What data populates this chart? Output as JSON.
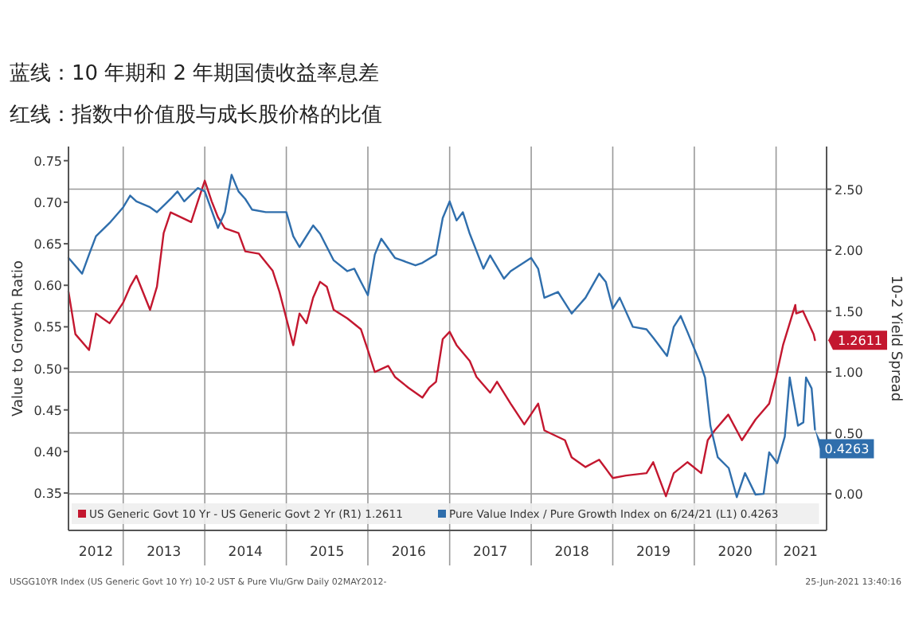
{
  "chart_data": {
    "type": "line",
    "title": "蓝线：10 年期和 2 年期国债收益率息差",
    "subtitle": "红线：指数中价值股与成长股价格的比值",
    "ylabel": "Value to Growth Ratio",
    "y2label": "10-2 Yield Spread",
    "xlim": [
      "2012-05-01",
      "2021-08-15"
    ],
    "xticks": [
      {
        "value": "2012-09-01",
        "label": "2012"
      },
      {
        "value": "2013-01-01",
        "label": null
      },
      {
        "value": "2013-07-02",
        "label": "2013"
      },
      {
        "value": "2014-01-01",
        "label": null
      },
      {
        "value": "2014-07-02",
        "label": "2014"
      },
      {
        "value": "2015-01-01",
        "label": null
      },
      {
        "value": "2015-07-02",
        "label": "2015"
      },
      {
        "value": "2016-01-01",
        "label": null
      },
      {
        "value": "2016-07-02",
        "label": "2016"
      },
      {
        "value": "2017-01-01",
        "label": null
      },
      {
        "value": "2017-07-02",
        "label": "2017"
      },
      {
        "value": "2018-01-01",
        "label": null
      },
      {
        "value": "2018-07-02",
        "label": "2018"
      },
      {
        "value": "2019-01-01",
        "label": null
      },
      {
        "value": "2019-07-02",
        "label": "2019"
      },
      {
        "value": "2020-01-01",
        "label": null
      },
      {
        "value": "2020-07-02",
        "label": "2020"
      },
      {
        "value": "2021-01-01",
        "label": null
      },
      {
        "value": "2021-04-20",
        "label": "2021"
      }
    ],
    "ylim": [
      0.305,
      0.767
    ],
    "yticks": [
      {
        "value": 0.35,
        "label": "0.35"
      },
      {
        "value": 0.4,
        "label": "0.40"
      },
      {
        "value": 0.45,
        "label": "0.45"
      },
      {
        "value": 0.5,
        "label": "0.50"
      },
      {
        "value": 0.55,
        "label": "0.55"
      },
      {
        "value": 0.6,
        "label": "0.60"
      },
      {
        "value": 0.65,
        "label": "0.65"
      },
      {
        "value": 0.7,
        "label": "0.70"
      },
      {
        "value": 0.75,
        "label": "0.75"
      }
    ],
    "y2lim": [
      -0.3,
      2.85
    ],
    "y2ticks": [
      {
        "value": 0,
        "label": "0.00"
      },
      {
        "value": 0.5,
        "label": "0.50"
      },
      {
        "value": 1,
        "label": "1.00"
      },
      {
        "value": 1.5,
        "label": "1.50"
      },
      {
        "value": 2,
        "label": "2.00"
      },
      {
        "value": 2.5,
        "label": "2.50"
      }
    ],
    "grid": true,
    "legend": "bottom",
    "line_style": "solid",
    "series": [
      {
        "name": "US Generic Govt 10 Yr - US Generic Govt 2 Yr (R1) 1.2611",
        "color": "#c3172f",
        "axis": "y2",
        "x": [
          "2012-05",
          "2012-06",
          "2012-08",
          "2012-09",
          "2012-10",
          "2012-11",
          "2013-01",
          "2013-02",
          "2013-03",
          "2013-05",
          "2013-06",
          "2013-07",
          "2013-08",
          "2013-11",
          "2013-12",
          "2014-01",
          "2014-02",
          "2014-03",
          "2014-04",
          "2014-06",
          "2014-07",
          "2014-09",
          "2014-11",
          "2014-12",
          "2015-01",
          "2015-02",
          "2015-03",
          "2015-04",
          "2015-05",
          "2015-06",
          "2015-07",
          "2015-08",
          "2015-10",
          "2015-12",
          "2016-01",
          "2016-02",
          "2016-04",
          "2016-05",
          "2016-07",
          "2016-09",
          "2016-10",
          "2016-11",
          "2016-12",
          "2017-01",
          "2017-02",
          "2017-04",
          "2017-05",
          "2017-07",
          "2017-08",
          "2017-10",
          "2017-12",
          "2018-02",
          "2018-03",
          "2018-06",
          "2018-07",
          "2018-09",
          "2018-11",
          "2019-01",
          "2019-03",
          "2019-06",
          "2019-07",
          "2019-08-27",
          "2019-10",
          "2019-12",
          "2020-02",
          "2020-03",
          "2020-04",
          "2020-06",
          "2020-08",
          "2020-10",
          "2020-12",
          "2021-01",
          "2021-02",
          "2021-03-28",
          "2021-04",
          "2021-05",
          "2021-06-18",
          "2021-06-24"
        ],
        "values": [
          1.66,
          1.31,
          1.18,
          1.48,
          1.44,
          1.4,
          1.57,
          1.7,
          1.79,
          1.51,
          1.7,
          2.14,
          2.31,
          2.23,
          2.4,
          2.57,
          2.4,
          2.27,
          2.18,
          2.14,
          1.99,
          1.97,
          1.83,
          1.66,
          1.44,
          1.22,
          1.48,
          1.4,
          1.61,
          1.74,
          1.7,
          1.51,
          1.44,
          1.35,
          1.18,
          1.0,
          1.05,
          0.96,
          0.87,
          0.79,
          0.87,
          0.92,
          1.27,
          1.33,
          1.22,
          1.09,
          0.96,
          0.83,
          0.92,
          0.74,
          0.57,
          0.74,
          0.52,
          0.44,
          0.3,
          0.22,
          0.28,
          0.13,
          0.15,
          0.17,
          0.26,
          -0.02,
          0.17,
          0.26,
          0.17,
          0.44,
          0.52,
          0.65,
          0.44,
          0.61,
          0.74,
          0.96,
          1.22,
          1.55,
          1.48,
          1.5,
          1.31,
          1.2611
        ],
        "value_labels": [
          null,
          null,
          null,
          null,
          null,
          null,
          null,
          null,
          null,
          null,
          null,
          null,
          null,
          null,
          null,
          null,
          null,
          null,
          null,
          null,
          null,
          null,
          null,
          null,
          null,
          null,
          null,
          null,
          null,
          null,
          null,
          null,
          null,
          null,
          null,
          null,
          null,
          null,
          null,
          null,
          null,
          null,
          null,
          null,
          null,
          null,
          null,
          null,
          null,
          null,
          null,
          null,
          null,
          null,
          null,
          null,
          null,
          null,
          null,
          null,
          null,
          null,
          null,
          null,
          null,
          null,
          null,
          null,
          null,
          null,
          null,
          null,
          null,
          null,
          null,
          null,
          null,
          "1.2611"
        ]
      },
      {
        "name": "Pure Value Index / Pure Growth Index on 6/24/21 (L1) 0.4263",
        "color": "#2f6eac",
        "axis": "y",
        "x": [
          "2012-05",
          "2012-07",
          "2012-08",
          "2012-09",
          "2012-11",
          "2013-01",
          "2013-02",
          "2013-03",
          "2013-05",
          "2013-06",
          "2013-08",
          "2013-09",
          "2013-10",
          "2013-12",
          "2014-01",
          "2014-03",
          "2014-04",
          "2014-05",
          "2014-06",
          "2014-07",
          "2014-08",
          "2014-10",
          "2015-01",
          "2015-02",
          "2015-03",
          "2015-05",
          "2015-06",
          "2015-08",
          "2015-10",
          "2015-11",
          "2015-12",
          "2016-01",
          "2016-02",
          "2016-03",
          "2016-05",
          "2016-06",
          "2016-08",
          "2016-09",
          "2016-11",
          "2016-12",
          "2017-01",
          "2017-02",
          "2017-03",
          "2017-04",
          "2017-06",
          "2017-07",
          "2017-09",
          "2017-10",
          "2018-01",
          "2018-02",
          "2018-03",
          "2018-05",
          "2018-07",
          "2018-09",
          "2018-11",
          "2018-12",
          "2019-01",
          "2019-02",
          "2019-04",
          "2019-06",
          "2019-07",
          "2019-09",
          "2019-10",
          "2019-11",
          "2019-12",
          "2020-01-25",
          "2020-02-18",
          "2020-03-13",
          "2020-04-15",
          "2020-06-03",
          "2020-07-09",
          "2020-08-15",
          "2020-10-01",
          "2020-11-06",
          "2020-12-01",
          "2021-01-06",
          "2021-02-09",
          "2021-03-03",
          "2021-04-09",
          "2021-05-03",
          "2021-05-15",
          "2021-06-09",
          "2021-06-24"
        ],
        "values": [
          0.633,
          0.614,
          0.637,
          0.659,
          0.675,
          0.694,
          0.708,
          0.701,
          0.694,
          0.688,
          0.704,
          0.713,
          0.701,
          0.717,
          0.713,
          0.669,
          0.688,
          0.733,
          0.713,
          0.704,
          0.691,
          0.688,
          0.688,
          0.659,
          0.646,
          0.672,
          0.662,
          0.63,
          0.617,
          0.62,
          0.604,
          0.588,
          0.637,
          0.656,
          0.633,
          0.63,
          0.624,
          0.627,
          0.637,
          0.681,
          0.701,
          0.678,
          0.688,
          0.662,
          0.62,
          0.636,
          0.608,
          0.617,
          0.633,
          0.62,
          0.585,
          0.592,
          0.566,
          0.585,
          0.614,
          0.604,
          0.572,
          0.585,
          0.55,
          0.547,
          0.537,
          0.515,
          0.55,
          0.563,
          0.544,
          0.508,
          0.489,
          0.431,
          0.393,
          0.38,
          0.345,
          0.374,
          0.348,
          0.349,
          0.399,
          0.386,
          0.418,
          0.489,
          0.431,
          0.435,
          0.489,
          0.476,
          0.4263
        ],
        "value_labels": [
          null,
          null,
          null,
          null,
          null,
          null,
          null,
          null,
          null,
          null,
          null,
          null,
          null,
          null,
          null,
          null,
          null,
          null,
          null,
          null,
          null,
          null,
          null,
          null,
          null,
          null,
          null,
          null,
          null,
          null,
          null,
          null,
          null,
          null,
          null,
          null,
          null,
          null,
          null,
          null,
          null,
          null,
          null,
          null,
          null,
          null,
          null,
          null,
          null,
          null,
          null,
          null,
          null,
          null,
          null,
          null,
          null,
          null,
          null,
          null,
          null,
          null,
          null,
          null,
          null,
          null,
          null,
          null,
          null,
          null,
          null,
          null,
          null,
          null,
          null,
          null,
          null,
          null,
          null,
          null,
          null,
          null,
          "0.4263"
        ]
      }
    ],
    "annotations": [
      "USGG10YR Index (US Generic Govt 10 Yr) 10-2 UST & Pure Vlu/Grw  Daily 02MAY2012-",
      "25-Jun-2021 13:40:16"
    ]
  }
}
